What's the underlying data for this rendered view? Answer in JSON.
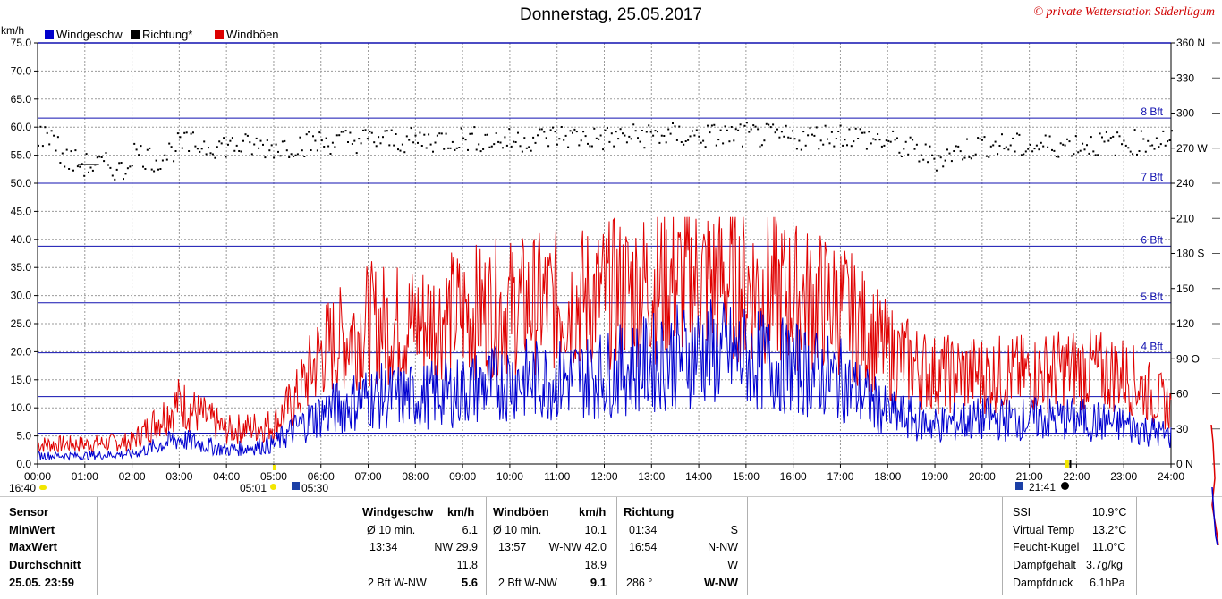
{
  "title": "Donnerstag, 25.05.2017",
  "copyright": "© private Wetterstation Süderlügum",
  "unit_left": "km/h",
  "legend": [
    {
      "label": "Windgeschw",
      "color": "#0000cc"
    },
    {
      "label": "Richtung*",
      "color": "#000000"
    },
    {
      "label": "Windböen",
      "color": "#dd0000"
    }
  ],
  "chart_data": {
    "type": "line",
    "title": "Donnerstag, 25.05.2017",
    "x_ticks": [
      "00:00",
      "01:00",
      "02:00",
      "03:00",
      "04:00",
      "05:00",
      "06:00",
      "07:00",
      "08:00",
      "09:00",
      "10:00",
      "11:00",
      "12:00",
      "13:00",
      "14:00",
      "15:00",
      "16:00",
      "17:00",
      "18:00",
      "19:00",
      "20:00",
      "21:00",
      "22:00",
      "23:00",
      "24:00"
    ],
    "y_left": {
      "label": "km/h",
      "range": [
        0,
        75
      ],
      "ticks": [
        "0.0",
        "5.0",
        "10.0",
        "15.0",
        "20.0",
        "25.0",
        "30.0",
        "35.0",
        "40.0",
        "45.0",
        "50.0",
        "55.0",
        "60.0",
        "65.0",
        "70.0",
        "75.0"
      ]
    },
    "y_right": {
      "range": [
        0,
        360
      ],
      "ticks": [
        "0 N",
        "30",
        "60",
        "90 O",
        "120",
        "150",
        "180 S",
        "210",
        "240",
        "270 W",
        "300",
        "330",
        "360 N"
      ]
    },
    "beaufort_lines": [
      {
        "value": 5.5,
        "label": ""
      },
      {
        "value": 12,
        "label": ""
      },
      {
        "value": 19.8,
        "label": "4 Bft"
      },
      {
        "value": 28.7,
        "label": "5 Bft"
      },
      {
        "value": 38.8,
        "label": "6 Bft"
      },
      {
        "value": 50,
        "label": "7 Bft"
      },
      {
        "value": 61.6,
        "label": "8 Bft"
      }
    ],
    "series": [
      {
        "name": "Windgeschw",
        "x_hours": [
          0,
          1,
          2,
          3,
          4,
          5,
          5.5,
          6,
          7,
          8,
          9,
          10,
          11,
          12,
          13,
          14,
          15,
          16,
          17,
          18,
          19,
          20,
          21,
          22,
          23,
          24
        ],
        "values": [
          1.5,
          1.5,
          1.8,
          4.5,
          2.5,
          3.5,
          6.5,
          9,
          12,
          12,
          13,
          15,
          15,
          16,
          18,
          20,
          19,
          17,
          15,
          9,
          7,
          8,
          8,
          8,
          7,
          5
        ]
      },
      {
        "name": "Windböen",
        "x_hours": [
          0,
          1,
          2,
          3,
          4,
          5,
          5.5,
          6,
          7,
          8,
          9,
          10,
          11,
          12,
          13,
          14,
          15,
          16,
          17,
          18,
          19,
          20,
          21,
          22,
          23,
          24
        ],
        "values": [
          3.5,
          3.5,
          4,
          11,
          6,
          7,
          12,
          20,
          25,
          25,
          27,
          28,
          29,
          30,
          32,
          33,
          32,
          30,
          28,
          20,
          16,
          16,
          16,
          17,
          16,
          10
        ]
      },
      {
        "name": "Richtung*",
        "x_hours": [
          0,
          0.3,
          0.5,
          1,
          1.5,
          1.8,
          2,
          2.5,
          3,
          4,
          5,
          6,
          7,
          8,
          9,
          10,
          11,
          12,
          13,
          14,
          15,
          16,
          17,
          18,
          19,
          20,
          21,
          22,
          23,
          24
        ],
        "values": [
          280,
          284,
          262,
          256,
          256,
          250,
          268,
          260,
          274,
          273,
          272,
          276,
          278,
          277,
          279,
          277,
          281,
          279,
          282,
          281,
          282,
          279,
          283,
          276,
          262,
          274,
          272,
          274,
          275,
          279
        ]
      }
    ]
  },
  "below_axis": {
    "sunrise_time": "05:01",
    "sunset_time": "21:41",
    "left_time": "16:40",
    "moon_time": "05:30"
  },
  "table": {
    "labels": [
      "Sensor",
      "MinWert",
      "MaxWert",
      "Durchschnitt",
      "25.05. 23:59"
    ],
    "wind": {
      "header": "Windgeschw",
      "unit": "km/h",
      "rows": [
        {
          "a": "Ø 10 min.",
          "b": "6.1"
        },
        {
          "a": "13:34",
          "b": "NW 29.9"
        },
        {
          "a": "",
          "b": "11.8"
        },
        {
          "a": "2 Bft W-NW",
          "b": "5.6"
        }
      ]
    },
    "gust": {
      "header": "Windböen",
      "unit": "km/h",
      "rows": [
        {
          "a": "Ø 10 min.",
          "b": "10.1"
        },
        {
          "a": "13:57",
          "b": "W-NW 42.0"
        },
        {
          "a": "",
          "b": "18.9"
        },
        {
          "a": "2 Bft W-NW",
          "b": "9.1"
        }
      ]
    },
    "dir": {
      "header": "Richtung",
      "rows": [
        {
          "a": "01:34",
          "b": "S"
        },
        {
          "a": "16:54",
          "b": "N-NW"
        },
        {
          "a": "",
          "b": "W"
        },
        {
          "a": "286 °",
          "b": "W-NW"
        }
      ]
    },
    "extra": [
      {
        "k": "SSI",
        "v": "10.9°C"
      },
      {
        "k": "Virtual Temp",
        "v": "13.2°C"
      },
      {
        "k": "Feucht-Kugel",
        "v": "11.0°C"
      },
      {
        "k": "Dampfgehalt",
        "v": "3.7g/kg"
      },
      {
        "k": "Dampfdruck",
        "v": "6.1hPa"
      }
    ]
  }
}
